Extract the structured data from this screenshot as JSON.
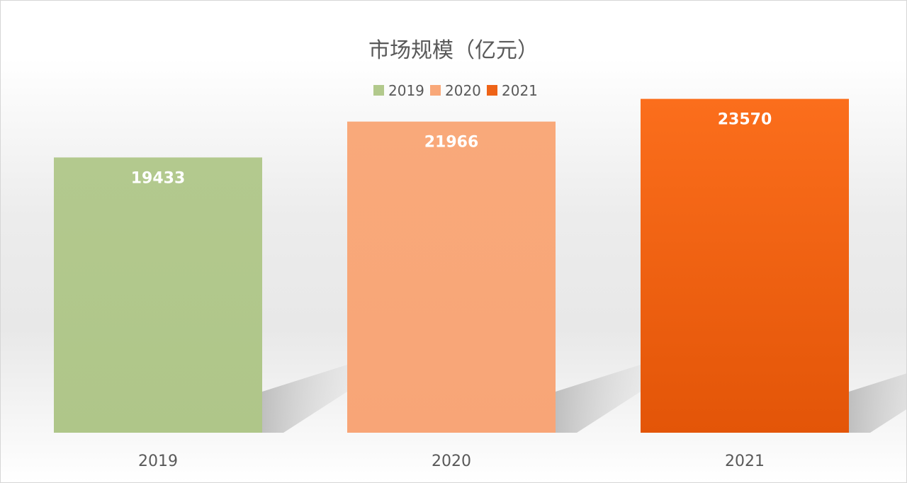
{
  "chart_data": {
    "type": "bar",
    "title": "市场规模（亿元）",
    "categories": [
      "2019",
      "2020",
      "2021"
    ],
    "values": [
      19433,
      21966,
      23570
    ],
    "data_labels": [
      "19433",
      "21966",
      "23570"
    ],
    "legend": [
      "2019",
      "2020",
      "2021"
    ],
    "legend_position": "top",
    "colors": [
      "#b2c98c",
      "#f9a879",
      "#ee6317"
    ],
    "ylim": [
      0,
      25000
    ],
    "grid": false,
    "y_axis_visible": false
  }
}
